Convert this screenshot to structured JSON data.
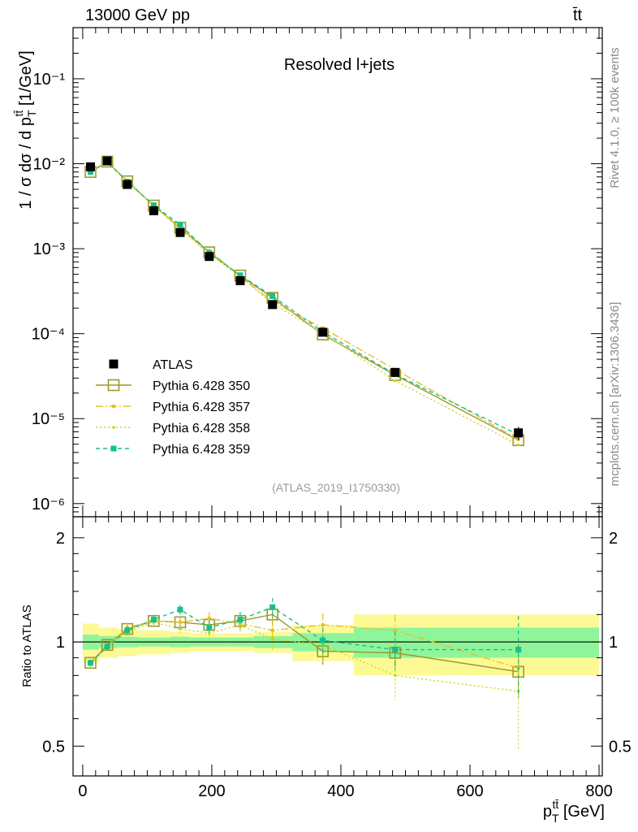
{
  "header": {
    "energy_label": "13000 GeV pp",
    "process_label": "t̄t"
  },
  "side": {
    "rivet": "Rivet 4.1.0, ≥ 100k events",
    "mcplots": "mcplots.cern.ch [arXiv:1306.3436]"
  },
  "chart_data": {
    "type": "line",
    "title": "Resolved l+jets",
    "analysis_id": "(ATLAS_2019_I1750330)",
    "ylabel_main": "1 / σ dσ / d p_T^{t̄t} [1/GeV]",
    "ylabel_ratio": "Ratio to ATLAS",
    "xlabel": "p_T^{t̄t} [GeV]",
    "xlim": [
      -15,
      805
    ],
    "ylim_main": [
      7e-07,
      0.4
    ],
    "ylim_ratio": [
      0.41,
      2.3
    ],
    "xticks": [
      "0",
      "200",
      "400",
      "600",
      "800"
    ],
    "yticks_main": [
      "10⁻⁶",
      "10⁻⁵",
      "10⁻⁴",
      "10⁻³",
      "10⁻²",
      "10⁻¹"
    ],
    "yticks_ratio": [
      "0.5",
      "1",
      "2"
    ],
    "bin_edges": [
      0,
      25,
      55,
      85,
      135,
      165,
      225,
      265,
      325,
      420,
      550,
      800
    ],
    "x": [
      12,
      38,
      69,
      110,
      151,
      196,
      244,
      294,
      372,
      484,
      675
    ],
    "ratio_band_green": [
      0.05,
      0.04,
      0.035,
      0.03,
      0.035,
      0.03,
      0.03,
      0.04,
      0.06,
      0.1,
      0.1
    ],
    "ratio_band_yellow": [
      0.13,
      0.1,
      0.09,
      0.08,
      0.07,
      0.06,
      0.06,
      0.07,
      0.12,
      0.2,
      0.2
    ],
    "legend": [
      "ATLAS",
      "Pythia 6.428 350",
      "Pythia 6.428 357",
      "Pythia 6.428 358",
      "Pythia 6.428 359"
    ],
    "data": {
      "name": "ATLAS",
      "values": [
        0.0092,
        0.0108,
        0.0057,
        0.0028,
        0.00155,
        0.00081,
        0.00042,
        0.00022,
        0.000104,
        3.5e-05,
        6.8e-06
      ],
      "errors": [
        0.001,
        0.0009,
        0.0004,
        0.00022,
        0.00012,
        6e-05,
        3e-05,
        1.6e-05,
        8e-06,
        3e-06,
        1.2e-06
      ]
    },
    "series": [
      {
        "name": "Pythia 6.428 350",
        "color": "#9a9a2c",
        "dash": "",
        "marker": "open-square",
        "ratio": [
          0.87,
          0.98,
          1.09,
          1.15,
          1.14,
          1.12,
          1.15,
          1.2,
          0.94,
          0.93,
          0.82
        ],
        "ratio_err": [
          0.02,
          0.02,
          0.03,
          0.03,
          0.04,
          0.05,
          0.06,
          0.08,
          0.08,
          0.1,
          0.13
        ]
      },
      {
        "name": "Pythia 6.428 357",
        "color": "#e8c022",
        "dash": "9,3,2,3",
        "marker": "star",
        "ratio": [
          0.87,
          0.97,
          1.1,
          1.15,
          1.14,
          1.17,
          1.13,
          1.08,
          1.12,
          1.08,
          0.84
        ],
        "ratio_err": [
          0.02,
          0.02,
          0.03,
          0.03,
          0.04,
          0.05,
          0.06,
          0.08,
          0.09,
          0.12,
          0.15
        ]
      },
      {
        "name": "Pythia 6.428 358",
        "color": "#c8d618",
        "dash": "2,3",
        "marker": "dot",
        "ratio": [
          0.86,
          0.97,
          1.07,
          1.14,
          1.09,
          1.06,
          1.12,
          1.02,
          0.98,
          0.8,
          0.72
        ],
        "ratio_err": [
          0.02,
          0.02,
          0.03,
          0.03,
          0.04,
          0.05,
          0.06,
          0.08,
          0.1,
          0.12,
          0.23
        ]
      },
      {
        "name": "Pythia 6.428 359",
        "color": "#15c08a",
        "dash": "5,4",
        "marker": "filled-square",
        "ratio": [
          0.87,
          0.97,
          1.08,
          1.16,
          1.24,
          1.1,
          1.16,
          1.26,
          1.01,
          0.95,
          0.95
        ],
        "ratio_err": [
          0.02,
          0.02,
          0.03,
          0.03,
          0.04,
          0.05,
          0.06,
          0.08,
          0.09,
          0.12,
          0.24
        ]
      }
    ]
  }
}
